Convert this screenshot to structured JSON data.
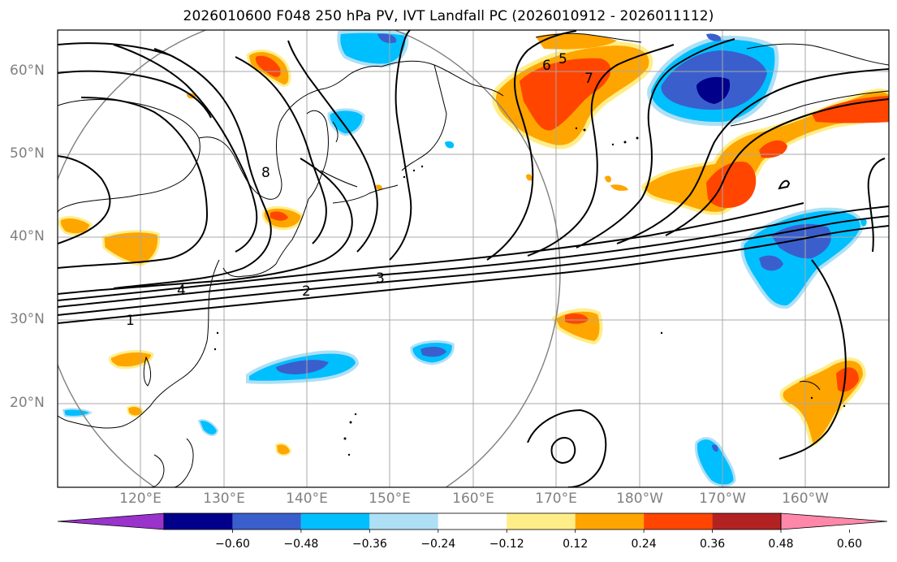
{
  "title": "2026010600 F048 250 hPa PV, IVT Landfall PC (2026010912 - 2026011112)",
  "lat_labels": [
    "60°N",
    "50°N",
    "40°N",
    "30°N",
    "20°N"
  ],
  "lon_labels": [
    "120°E",
    "130°E",
    "140°E",
    "150°E",
    "160°E",
    "170°E",
    "180°W",
    "170°W",
    "160°W"
  ],
  "contour_labels": [
    "1",
    "2",
    "3",
    "4",
    "5",
    "6",
    "7",
    "8"
  ],
  "colorbar": {
    "levels": [
      "−0.60",
      "−0.48",
      "−0.36",
      "−0.24",
      "−0.12",
      "0.12",
      "0.24",
      "0.36",
      "0.48",
      "0.60"
    ],
    "colors": [
      "#9933cc",
      "#00008b",
      "#3a5fcd",
      "#00bfff",
      "#aee0f5",
      "#ffffff",
      "#ffee88",
      "#ffa500",
      "#ff4500",
      "#b22222",
      "#ff88aa"
    ]
  }
}
